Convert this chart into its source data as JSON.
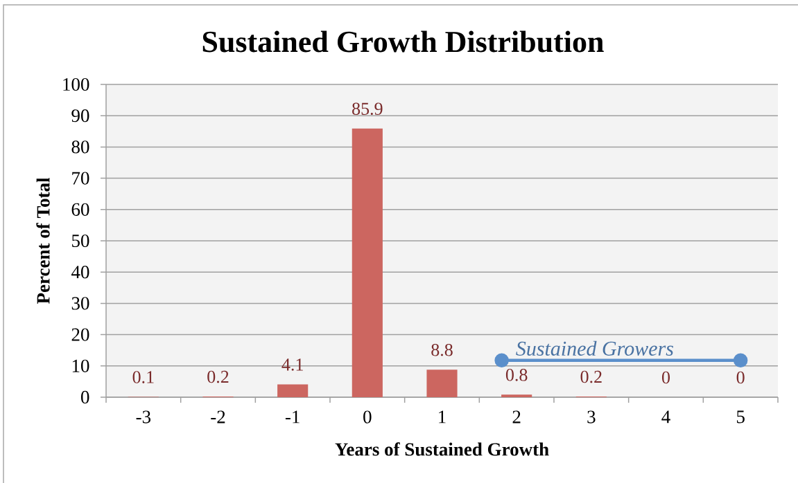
{
  "chart_data": {
    "type": "bar",
    "title": "Sustained Growth Distribution",
    "xlabel": "Years of Sustained Growth",
    "ylabel": "Percent of Total",
    "x": [
      -3,
      -2,
      -1,
      0,
      1,
      2,
      3,
      4,
      5
    ],
    "series": [
      {
        "color": "#cc6660",
        "values": [
          0.1,
          0.2,
          4.1,
          85.9,
          8.8,
          0.8,
          0.2,
          0,
          0
        ],
        "value_labels": [
          "0.1",
          "0.2",
          "4.1",
          "85.9",
          "8.8",
          "0.8",
          "0.2",
          "0",
          "0"
        ]
      },
      {
        "type": "line",
        "name": "Sustained Growers",
        "color": "#5b8fcb",
        "x": [
          1.8,
          5
        ],
        "values": [
          11.8,
          11.8
        ],
        "marker": "circle",
        "line_style": "solid"
      }
    ],
    "xlim": [
      -3.5,
      5.5
    ],
    "xticks": [
      -3,
      -2,
      -1,
      0,
      1,
      2,
      3,
      4,
      5
    ],
    "ylim": [
      0,
      100
    ],
    "yticks": [
      0,
      10,
      20,
      30,
      40,
      50,
      60,
      70,
      80,
      90,
      100
    ],
    "grid": "y"
  }
}
